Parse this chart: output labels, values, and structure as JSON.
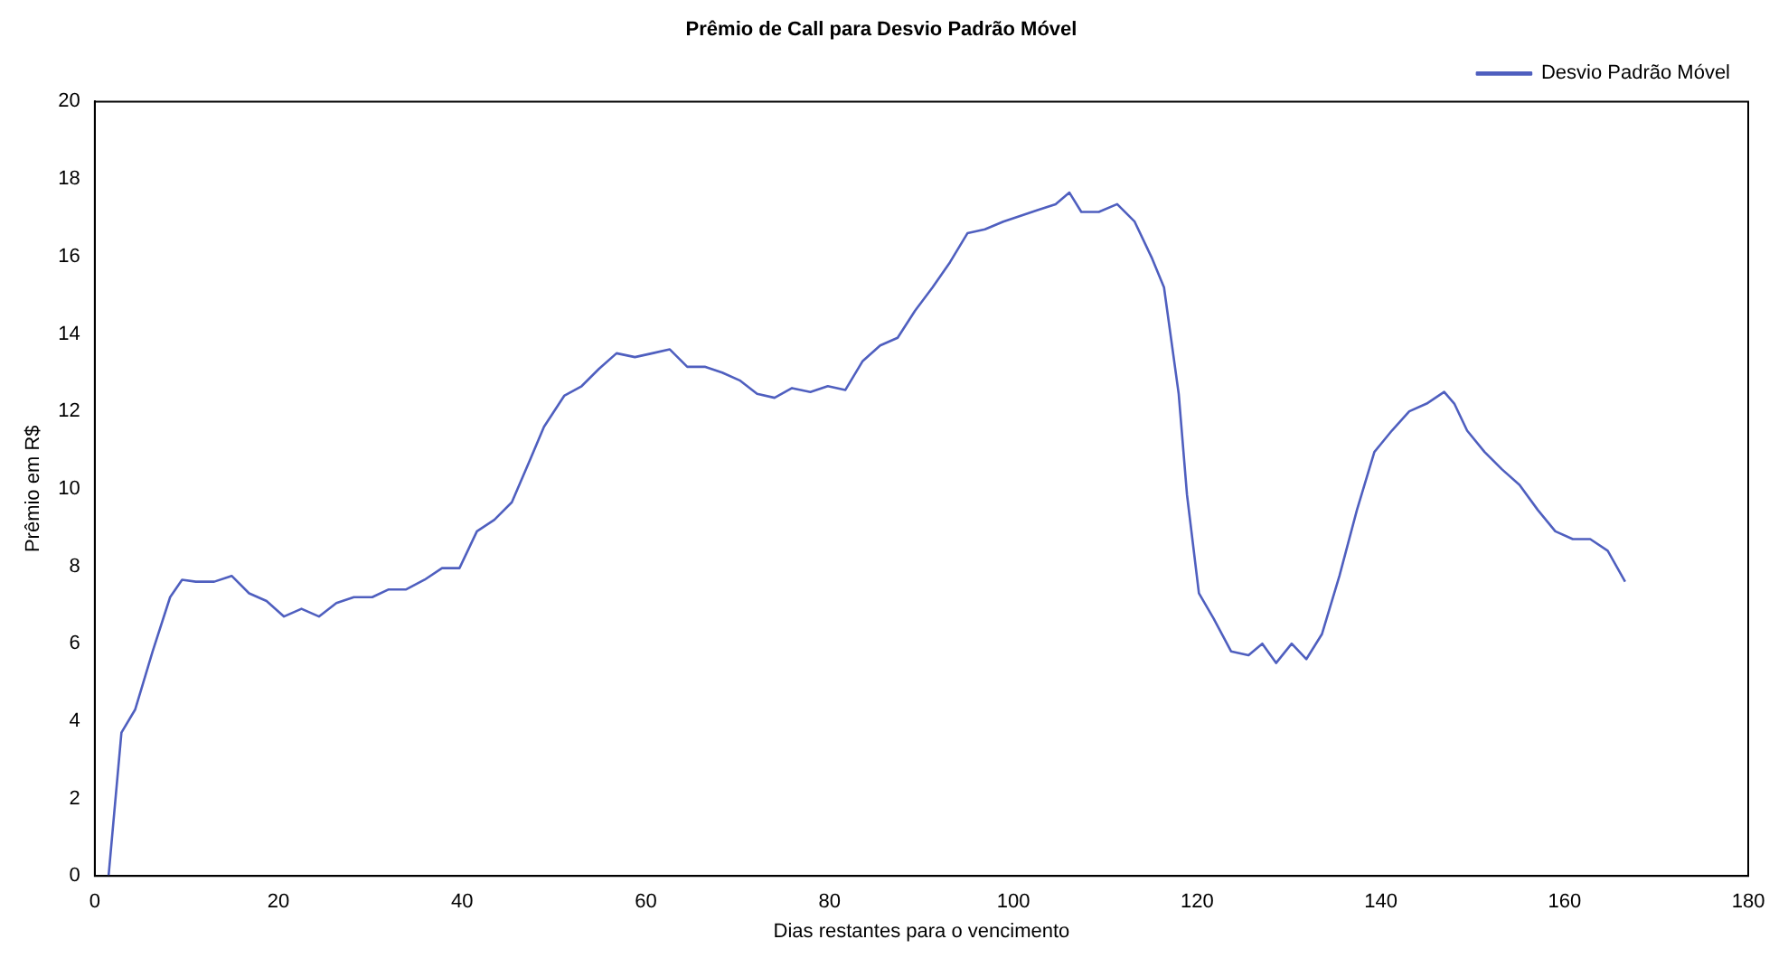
{
  "chart_data": {
    "type": "line",
    "title": "Prêmio de Call para Desvio Padrão Móvel",
    "xlabel": "Dias restantes para o vencimento",
    "ylabel": "Prêmio em R$",
    "x": [
      1.5,
      2.9,
      4.4,
      6.3,
      8.2,
      9.5,
      11,
      13,
      14.9,
      16.8,
      18.7,
      20.6,
      22.5,
      24.4,
      26.3,
      28.2,
      30.2,
      32,
      33.9,
      35.9,
      37.8,
      39.7,
      41.6,
      43.5,
      45.4,
      47.3,
      48.9,
      51.1,
      53,
      54.9,
      56.8,
      58.8,
      60.7,
      62.6,
      64.5,
      66.4,
      68.3,
      70.2,
      72.1,
      74,
      75.9,
      77.9,
      79.8,
      81.7,
      83.6,
      85.5,
      87.4,
      89.3,
      91.2,
      93.1,
      95,
      96.9,
      98.9,
      100.8,
      102.7,
      104.6,
      106.1,
      107.4,
      109.3,
      111.3,
      113.2,
      115.1,
      116.4,
      118,
      118.9,
      120.2,
      121.8,
      123.7,
      125.6,
      127.1,
      128.6,
      130.3,
      131.9,
      133.6,
      135.5,
      137.4,
      139.3,
      141.2,
      143.1,
      145,
      146.9,
      148,
      149.4,
      151.3,
      153.2,
      155.1,
      157.1,
      159,
      160.9,
      162.8,
      164.7,
      166.6
    ],
    "series": [
      {
        "name": "Desvio Padrão Móvel",
        "color": "#4f5fbf",
        "values": [
          0,
          3.7,
          4.3,
          5.8,
          7.2,
          7.65,
          7.6,
          7.6,
          7.75,
          7.3,
          7.1,
          6.7,
          6.9,
          6.7,
          7.05,
          7.2,
          7.2,
          7.4,
          7.4,
          7.65,
          7.95,
          7.95,
          8.9,
          9.2,
          9.65,
          10.7,
          11.6,
          12.4,
          12.65,
          13.1,
          13.5,
          13.4,
          13.5,
          13.6,
          13.15,
          13.15,
          13,
          12.8,
          12.45,
          12.35,
          12.6,
          12.5,
          12.65,
          12.55,
          13.3,
          13.7,
          13.9,
          14.6,
          15.2,
          15.85,
          16.6,
          16.7,
          16.9,
          17.05,
          17.2,
          17.35,
          17.65,
          17.15,
          17.15,
          17.35,
          16.9,
          15.95,
          15.2,
          12.45,
          9.85,
          7.3,
          6.65,
          5.8,
          5.7,
          6,
          5.5,
          6,
          5.6,
          6.25,
          7.75,
          9.45,
          10.95,
          11.5,
          12,
          12.2,
          12.5,
          12.2,
          11.5,
          10.95,
          10.5,
          10.1,
          9.45,
          8.9,
          8.7,
          8.7,
          8.4,
          7.6
        ]
      }
    ],
    "xlim": [
      0,
      180
    ],
    "xticks": [
      0,
      20,
      40,
      60,
      80,
      100,
      120,
      140,
      160,
      180
    ],
    "ylim": [
      0,
      20
    ],
    "yticks": [
      0,
      2,
      4,
      6,
      8,
      10,
      12,
      14,
      16,
      18,
      20
    ],
    "grid": false,
    "legend": "top right",
    "marker": "none",
    "line_style": "solid"
  }
}
